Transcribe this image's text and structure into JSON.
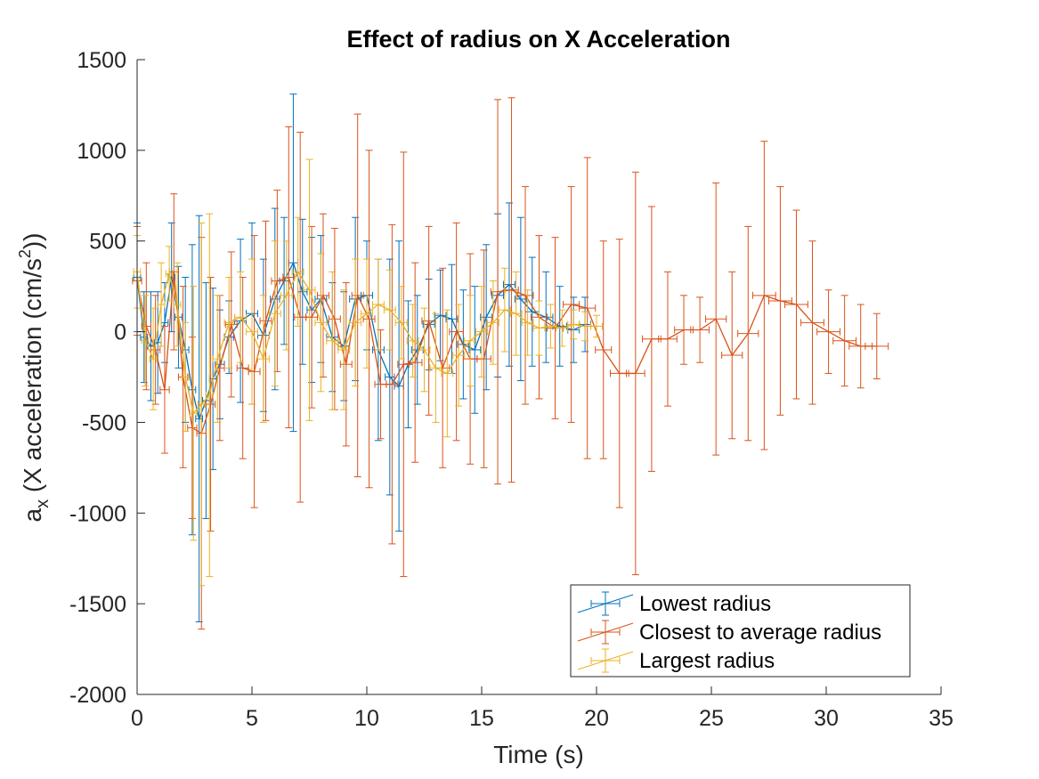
{
  "chart_data": {
    "type": "line",
    "title": "Effect of radius on X Acceleration",
    "xlabel": "Time (s)",
    "ylabel_main": "a",
    "ylabel_sub": "x",
    "ylabel_rest": " (X acceleration (cm/s",
    "ylabel_sup": "2",
    "ylabel_end": "))",
    "xlim": [
      0,
      35
    ],
    "ylim": [
      -2000,
      1500
    ],
    "xticks": [
      0,
      5,
      10,
      15,
      20,
      25,
      30,
      35
    ],
    "yticks": [
      -2000,
      -1500,
      -1000,
      -500,
      0,
      500,
      1000,
      1500
    ],
    "grid": false,
    "legend_position": "bottom-right",
    "error_bars": "vertical and horizontal, with caps",
    "series": [
      {
        "name": "Lowest radius",
        "color": "#0072BD",
        "x": [
          0.0,
          0.3,
          0.6,
          0.9,
          1.2,
          1.5,
          1.8,
          2.1,
          2.4,
          2.7,
          3.0,
          3.3,
          3.6,
          4.0,
          4.5,
          5.0,
          5.5,
          6.0,
          6.4,
          6.8,
          7.2,
          7.6,
          8.0,
          8.5,
          9.0,
          9.5,
          10.0,
          10.5,
          11.0,
          11.4,
          11.8,
          12.2,
          12.7,
          13.2,
          13.7,
          14.2,
          14.7,
          15.2,
          15.7,
          16.2,
          16.7,
          17.2,
          17.8,
          18.4,
          19.0,
          19.5
        ],
        "y": [
          300,
          -30,
          -80,
          -60,
          50,
          300,
          80,
          -100,
          -320,
          -480,
          -380,
          -260,
          -180,
          -30,
          60,
          100,
          -20,
          180,
          280,
          380,
          220,
          120,
          180,
          -30,
          -80,
          180,
          200,
          -100,
          -250,
          -300,
          -180,
          -100,
          40,
          90,
          70,
          -70,
          -100,
          80,
          200,
          260,
          180,
          110,
          80,
          30,
          10,
          40
        ],
        "err": [
          300,
          250,
          300,
          280,
          220,
          300,
          280,
          400,
          800,
          1120,
          650,
          500,
          300,
          200,
          450,
          500,
          420,
          500,
          350,
          930,
          400,
          400,
          350,
          300,
          300,
          450,
          300,
          500,
          650,
          800,
          350,
          300,
          250,
          250,
          300,
          300,
          350,
          400,
          450,
          450,
          450,
          300,
          250,
          220,
          180,
          150
        ],
        "xerr": [
          0.15,
          0.15,
          0.15,
          0.15,
          0.15,
          0.15,
          0.15,
          0.15,
          0.15,
          0.15,
          0.15,
          0.15,
          0.2,
          0.2,
          0.25,
          0.25,
          0.25,
          0.2,
          0.2,
          0.2,
          0.2,
          0.2,
          0.25,
          0.25,
          0.25,
          0.25,
          0.25,
          0.25,
          0.2,
          0.2,
          0.2,
          0.25,
          0.25,
          0.25,
          0.25,
          0.25,
          0.25,
          0.25,
          0.25,
          0.25,
          0.25,
          0.3,
          0.3,
          0.3,
          0.25,
          0.25
        ]
      },
      {
        "name": "Closest to average radius",
        "color": "#D95319",
        "x": [
          0.0,
          0.4,
          0.8,
          1.2,
          1.6,
          2.0,
          2.4,
          2.8,
          3.2,
          3.6,
          4.1,
          4.6,
          5.1,
          5.6,
          6.1,
          6.6,
          7.1,
          7.6,
          8.1,
          8.6,
          9.1,
          9.6,
          10.1,
          10.6,
          11.1,
          11.6,
          12.1,
          12.7,
          13.3,
          13.9,
          14.5,
          15.1,
          15.7,
          16.3,
          16.9,
          17.5,
          18.2,
          18.9,
          19.6,
          20.3,
          21.0,
          21.7,
          22.4,
          23.1,
          23.8,
          24.5,
          25.2,
          25.9,
          26.6,
          27.3,
          28.0,
          28.7,
          29.4,
          30.1,
          30.8,
          31.5,
          32.2
        ],
        "y": [
          280,
          30,
          -100,
          -320,
          330,
          -250,
          -530,
          -560,
          -400,
          -200,
          40,
          -200,
          -220,
          60,
          280,
          300,
          80,
          80,
          200,
          70,
          -180,
          200,
          70,
          -290,
          -290,
          -180,
          -170,
          60,
          -200,
          0,
          -150,
          -150,
          220,
          230,
          200,
          80,
          20,
          150,
          130,
          -100,
          -230,
          -230,
          -40,
          -40,
          10,
          10,
          70,
          -130,
          -10,
          200,
          170,
          150,
          50,
          0,
          -50,
          -80,
          -80
        ],
        "err": [
          300,
          350,
          300,
          350,
          430,
          500,
          500,
          1080,
          700,
          400,
          400,
          500,
          750,
          550,
          500,
          830,
          1020,
          500,
          450,
          500,
          450,
          1000,
          930,
          300,
          880,
          1170,
          550,
          520,
          550,
          600,
          580,
          600,
          1060,
          1060,
          600,
          450,
          500,
          650,
          830,
          600,
          740,
          1110,
          730,
          370,
          190,
          180,
          750,
          460,
          590,
          850,
          630,
          520,
          450,
          230,
          250,
          230,
          180
        ],
        "xerr": [
          0.2,
          0.2,
          0.2,
          0.2,
          0.2,
          0.2,
          0.2,
          0.2,
          0.2,
          0.2,
          0.25,
          0.25,
          0.25,
          0.25,
          0.25,
          0.25,
          0.25,
          0.25,
          0.25,
          0.25,
          0.25,
          0.25,
          0.25,
          0.25,
          0.25,
          0.25,
          0.3,
          0.3,
          0.3,
          0.3,
          0.3,
          0.3,
          0.3,
          0.3,
          0.35,
          0.35,
          0.35,
          0.35,
          0.35,
          0.35,
          0.4,
          0.4,
          0.4,
          0.4,
          0.4,
          0.4,
          0.45,
          0.45,
          0.45,
          0.5,
          0.5,
          0.5,
          0.5,
          0.5,
          0.5,
          0.5,
          0.5
        ]
      },
      {
        "name": "Largest radius",
        "color": "#EDB120",
        "x": [
          0.0,
          0.35,
          0.7,
          1.05,
          1.4,
          1.75,
          2.1,
          2.45,
          2.8,
          3.15,
          3.5,
          4.0,
          4.5,
          5.0,
          5.5,
          6.0,
          6.5,
          7.0,
          7.5,
          8.0,
          8.5,
          9.0,
          9.5,
          10.0,
          10.5,
          11.0,
          11.5,
          12.0,
          12.5,
          13.0,
          13.5,
          14.0,
          14.5,
          15.0,
          15.5,
          16.0,
          16.5,
          17.0,
          17.5,
          18.0,
          18.5,
          19.0,
          19.5,
          20.0
        ],
        "y": [
          330,
          -50,
          -150,
          150,
          320,
          150,
          -250,
          -450,
          -400,
          -350,
          -150,
          50,
          80,
          0,
          -150,
          100,
          200,
          330,
          230,
          50,
          -50,
          -100,
          50,
          100,
          150,
          120,
          50,
          -50,
          -100,
          -200,
          -230,
          -130,
          -50,
          0,
          50,
          120,
          100,
          50,
          20,
          30,
          20,
          40,
          30,
          30
        ],
        "err": [
          200,
          250,
          280,
          230,
          150,
          230,
          300,
          700,
          1000,
          1000,
          350,
          250,
          250,
          400,
          350,
          400,
          300,
          300,
          720,
          380,
          380,
          330,
          350,
          300,
          250,
          220,
          200,
          200,
          230,
          300,
          350,
          280,
          250,
          250,
          230,
          230,
          230,
          180,
          150,
          120,
          100,
          80,
          80,
          60
        ],
        "xerr": [
          0.15,
          0.15,
          0.15,
          0.15,
          0.15,
          0.15,
          0.15,
          0.15,
          0.15,
          0.15,
          0.2,
          0.2,
          0.25,
          0.25,
          0.25,
          0.25,
          0.25,
          0.25,
          0.25,
          0.25,
          0.25,
          0.25,
          0.25,
          0.25,
          0.25,
          0.25,
          0.25,
          0.25,
          0.25,
          0.25,
          0.25,
          0.25,
          0.25,
          0.25,
          0.25,
          0.25,
          0.25,
          0.25,
          0.25,
          0.25,
          0.25,
          0.25,
          0.25,
          0.25
        ]
      }
    ]
  }
}
